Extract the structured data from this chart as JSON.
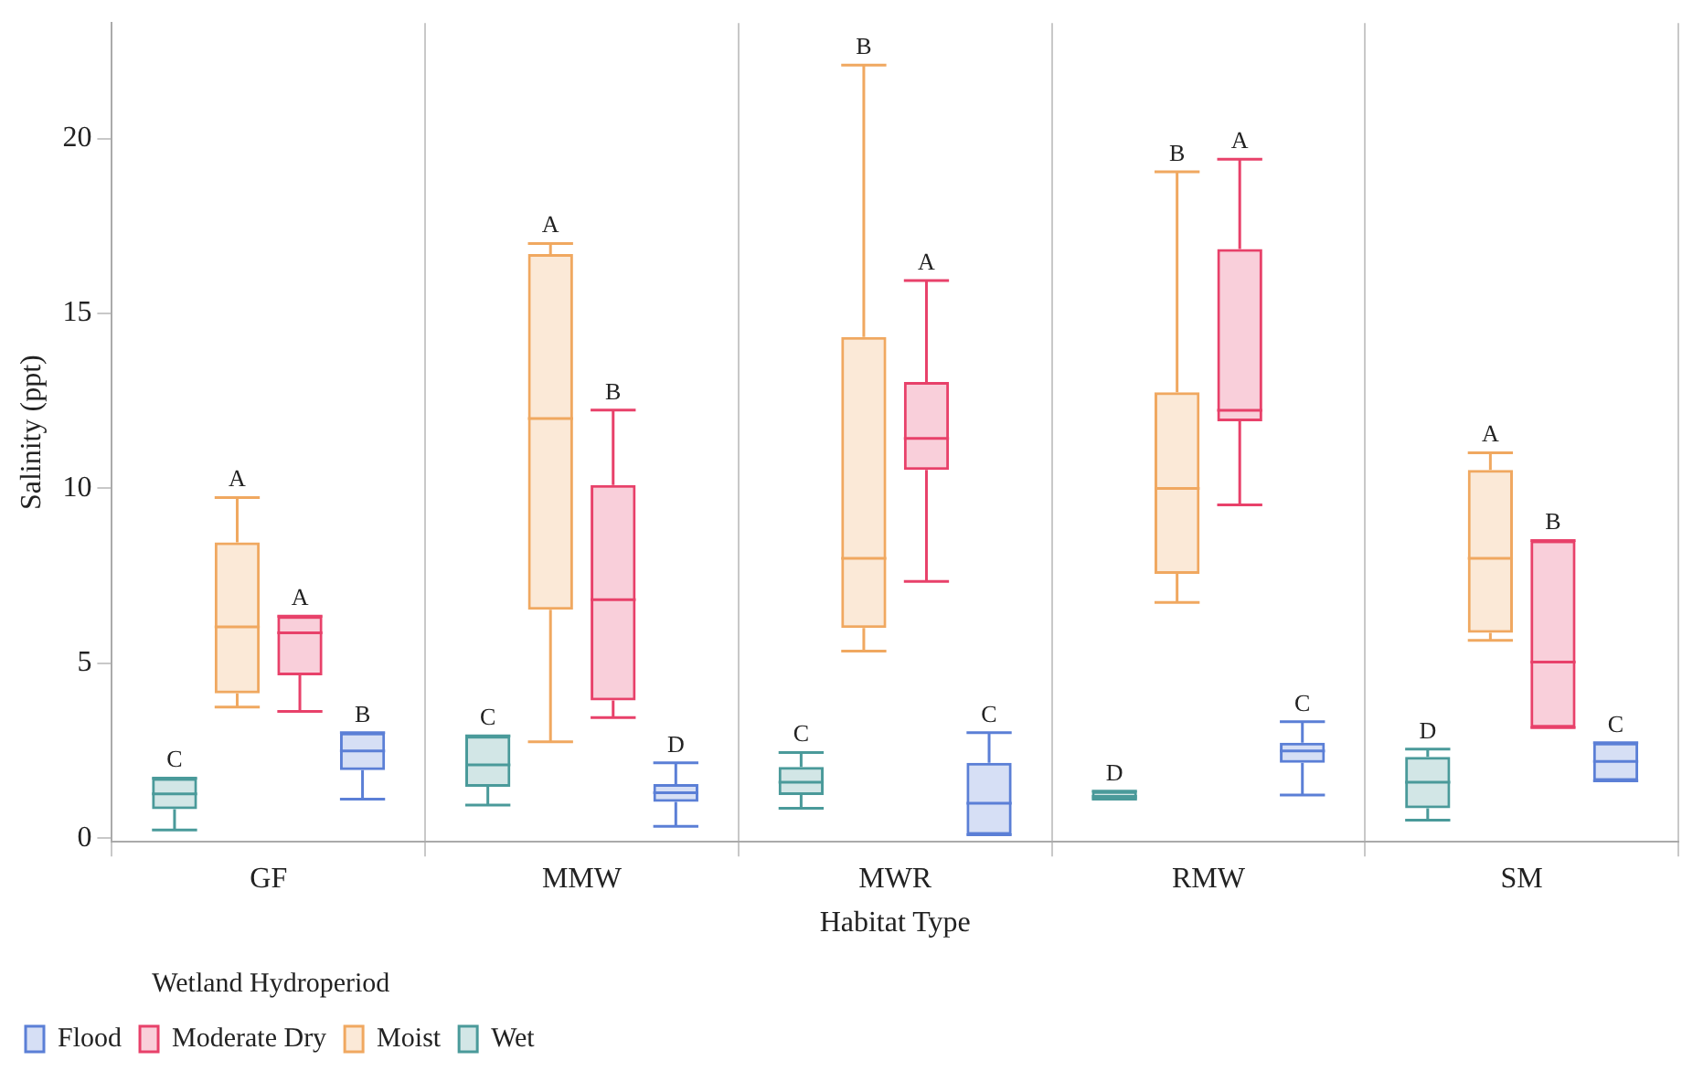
{
  "chart_data": {
    "type": "box",
    "xlabel": "Habitat Type",
    "ylabel": "Salinity (ppt)",
    "legend_title": "Wetland Hydroperiod",
    "legend": "bottom",
    "grid": "x",
    "categories": [
      "GF",
      "MMW",
      "MWR",
      "RMW",
      "SM"
    ],
    "ylim": [
      -0.1,
      23.3
    ],
    "yticks": [
      0,
      5,
      10,
      15,
      20
    ],
    "series": [
      {
        "name": "Wet",
        "color": "#4a9a9a",
        "value_labels": [
          "C",
          "C",
          "C",
          "D",
          "D"
        ],
        "boxes": [
          {
            "low": 0.24,
            "q1": 0.83,
            "median": 1.27,
            "q3": 1.72,
            "high": 1.72
          },
          {
            "low": 0.95,
            "q1": 1.47,
            "median": 2.1,
            "q3": 2.93,
            "high": 2.93
          },
          {
            "low": 0.86,
            "q1": 1.24,
            "median": 1.6,
            "q3": 2.04,
            "high": 2.45
          },
          {
            "low": 1.12,
            "q1": 1.12,
            "median": 1.2,
            "q3": 1.35,
            "high": 1.35
          },
          {
            "low": 0.52,
            "q1": 0.86,
            "median": 1.6,
            "q3": 2.33,
            "high": 2.55
          }
        ]
      },
      {
        "name": "Moist",
        "color": "#f0a860",
        "value_labels": [
          "A",
          "A",
          "B",
          "B",
          "A"
        ],
        "boxes": [
          {
            "low": 3.75,
            "q1": 4.14,
            "median": 6.04,
            "q3": 8.46,
            "high": 9.74
          },
          {
            "low": 2.76,
            "q1": 6.53,
            "median": 12,
            "q3": 16.7,
            "high": 17
          },
          {
            "low": 5.35,
            "q1": 6.01,
            "median": 8,
            "q3": 14.33,
            "high": 22.1
          },
          {
            "low": 6.74,
            "q1": 7.56,
            "median": 10,
            "q3": 12.75,
            "high": 19.05
          },
          {
            "low": 5.66,
            "q1": 5.87,
            "median": 8,
            "q3": 10.53,
            "high": 11.02
          }
        ]
      },
      {
        "name": "Moderate Dry",
        "color": "#e8416a",
        "value_labels": [
          "A",
          "B",
          "A",
          "A",
          "B"
        ],
        "boxes": [
          {
            "low": 3.63,
            "q1": 4.66,
            "median": 5.87,
            "q3": 6.35,
            "high": 6.35
          },
          {
            "low": 3.45,
            "q1": 3.94,
            "median": 6.82,
            "q3": 10.1,
            "high": 12.24
          },
          {
            "low": 7.34,
            "q1": 10.53,
            "median": 11.43,
            "q3": 13.04,
            "high": 15.94
          },
          {
            "low": 9.53,
            "q1": 11.92,
            "median": 12.23,
            "q3": 16.84,
            "high": 19.41
          },
          {
            "low": 3.16,
            "q1": 3.16,
            "median": 5.04,
            "q3": 8.51,
            "high": 8.51
          }
        ]
      },
      {
        "name": "Flood",
        "color": "#5b7fd6",
        "value_labels": [
          "B",
          "D",
          "C",
          "C",
          "C"
        ],
        "boxes": [
          {
            "low": 1.12,
            "q1": 1.95,
            "median": 2.5,
            "q3": 3.02,
            "high": 3.02
          },
          {
            "low": 0.34,
            "q1": 1.04,
            "median": 1.3,
            "q3": 1.55,
            "high": 2.16
          },
          {
            "low": 0.1,
            "q1": 0.1,
            "median": 1,
            "q3": 2.16,
            "high": 3.02
          },
          {
            "low": 1.24,
            "q1": 2.16,
            "median": 2.5,
            "q3": 2.73,
            "high": 3.33
          },
          {
            "low": 1.64,
            "q1": 1.64,
            "median": 2.2,
            "q3": 2.73,
            "high": 2.73
          }
        ]
      }
    ]
  }
}
